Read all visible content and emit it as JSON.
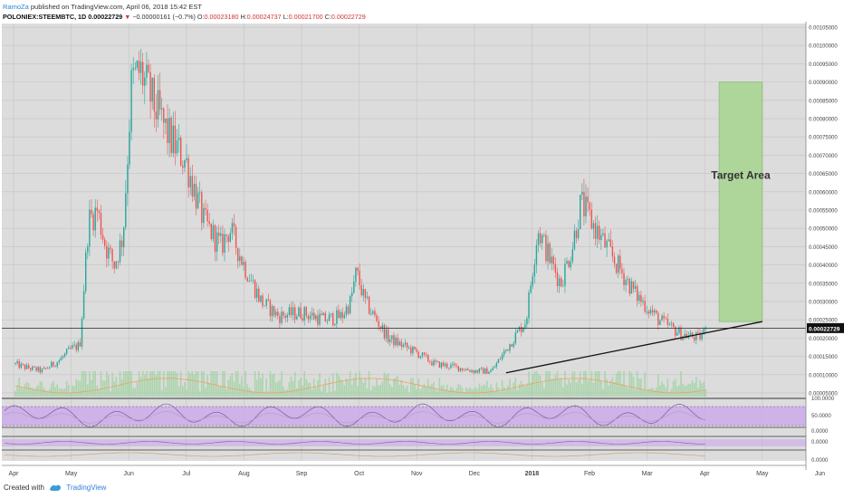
{
  "header": {
    "author": "RamoZa",
    "published_text": "published on TradingView.com, April 06, 2018 15:42 EST",
    "symbol": "POLONIEX:STEEMBTC, 1D",
    "last": "0.00022729",
    "change_arrow": "▼",
    "change": "−0.00000161 (−0.7%)",
    "o_label": "O:",
    "o_value": "0.00023180",
    "h_label": "H:",
    "h_value": "0.00024737",
    "l_label": "L:",
    "l_value": "0.00021700",
    "c_label": "C:",
    "c_value": "0.00022729"
  },
  "footer": {
    "created_with": "Created with",
    "brand": "TradingView"
  },
  "colors": {
    "up": "#26a69a",
    "down": "#ef5350",
    "target": "#a6d68f",
    "rsi_band": "#c9a4ec",
    "volume": "#9fd3a0",
    "price_label": "#111111"
  },
  "chart_data": {
    "type": "candlestick",
    "symbol": "POLONIEX:STEEMBTC",
    "timeframe": "1D",
    "price_axis": [
      "0.00105000",
      "0.00100000",
      "0.00095000",
      "0.00090000",
      "0.00085000",
      "0.00080000",
      "0.00075000",
      "0.00070000",
      "0.00065000",
      "0.00060000",
      "0.00055000",
      "0.00050000",
      "0.00045000",
      "0.00040000",
      "0.00035000",
      "0.00030000",
      "0.00025000",
      "0.00022729",
      "0.00020000",
      "0.00015000",
      "0.00010000",
      "0.00005000"
    ],
    "last_price_label": "0.00022729",
    "time_labels": [
      "Apr",
      "May",
      "Jun",
      "Jul",
      "Aug",
      "Sep",
      "Oct",
      "Nov",
      "Dec",
      "2018",
      "Feb",
      "Mar",
      "Apr",
      "May",
      "Jun"
    ],
    "price_anchors": [
      {
        "m": 0.0,
        "p": 0.00013
      },
      {
        "m": 0.2,
        "p": 0.00012
      },
      {
        "m": 0.5,
        "p": 0.00011
      },
      {
        "m": 0.8,
        "p": 0.00014
      },
      {
        "m": 1.0,
        "p": 0.00017
      },
      {
        "m": 1.15,
        "p": 0.00018
      },
      {
        "m": 1.3,
        "p": 0.00052
      },
      {
        "m": 1.45,
        "p": 0.00055
      },
      {
        "m": 1.6,
        "p": 0.00045
      },
      {
        "m": 1.75,
        "p": 0.0004
      },
      {
        "m": 1.9,
        "p": 0.00048
      },
      {
        "m": 2.05,
        "p": 0.0009
      },
      {
        "m": 2.2,
        "p": 0.00093
      },
      {
        "m": 2.4,
        "p": 0.00085
      },
      {
        "m": 2.7,
        "p": 0.00075
      },
      {
        "m": 3.0,
        "p": 0.00068
      },
      {
        "m": 3.3,
        "p": 0.00052
      },
      {
        "m": 3.6,
        "p": 0.00045
      },
      {
        "m": 3.75,
        "p": 0.0005
      },
      {
        "m": 4.0,
        "p": 0.0004
      },
      {
        "m": 4.3,
        "p": 0.0003
      },
      {
        "m": 4.6,
        "p": 0.00026
      },
      {
        "m": 5.0,
        "p": 0.00027
      },
      {
        "m": 5.4,
        "p": 0.00025
      },
      {
        "m": 5.7,
        "p": 0.00026
      },
      {
        "m": 5.85,
        "p": 0.0003
      },
      {
        "m": 5.95,
        "p": 0.00038
      },
      {
        "m": 6.1,
        "p": 0.0003
      },
      {
        "m": 6.5,
        "p": 0.0002
      },
      {
        "m": 7.0,
        "p": 0.00016
      },
      {
        "m": 7.3,
        "p": 0.00013
      },
      {
        "m": 7.7,
        "p": 0.00012
      },
      {
        "m": 8.0,
        "p": 0.00011
      },
      {
        "m": 8.3,
        "p": 0.00011
      },
      {
        "m": 8.6,
        "p": 0.00018
      },
      {
        "m": 8.9,
        "p": 0.00025
      },
      {
        "m": 9.1,
        "p": 0.0005
      },
      {
        "m": 9.3,
        "p": 0.00042
      },
      {
        "m": 9.5,
        "p": 0.00035
      },
      {
        "m": 9.7,
        "p": 0.00045
      },
      {
        "m": 9.85,
        "p": 0.00057
      },
      {
        "m": 10.1,
        "p": 0.0005
      },
      {
        "m": 10.4,
        "p": 0.00042
      },
      {
        "m": 10.8,
        "p": 0.00032
      },
      {
        "m": 11.2,
        "p": 0.00025
      },
      {
        "m": 11.6,
        "p": 0.00021
      },
      {
        "m": 11.9,
        "p": 0.0002
      },
      {
        "m": 12.05,
        "p": 0.00022729
      }
    ],
    "horizontal_line_price": 0.00022729,
    "trendline": {
      "from": {
        "m": 8.55,
        "p": 0.000105
      },
      "to": {
        "m": 13.0,
        "p": 0.000245
      }
    },
    "target_area": {
      "label": "Target Area",
      "month_from": 12.25,
      "month_to": 13.0,
      "price_from": 0.000245,
      "price_to": 0.0009
    },
    "price_range": [
      4e-05,
      0.00106
    ],
    "rsi": {
      "axis": [
        "100.0000",
        "50.0000",
        "0.0000"
      ],
      "band": [
        30,
        70
      ]
    },
    "macd": {
      "axis": [
        "0.0000"
      ]
    },
    "lower_axis": [
      "0.0000"
    ]
  }
}
